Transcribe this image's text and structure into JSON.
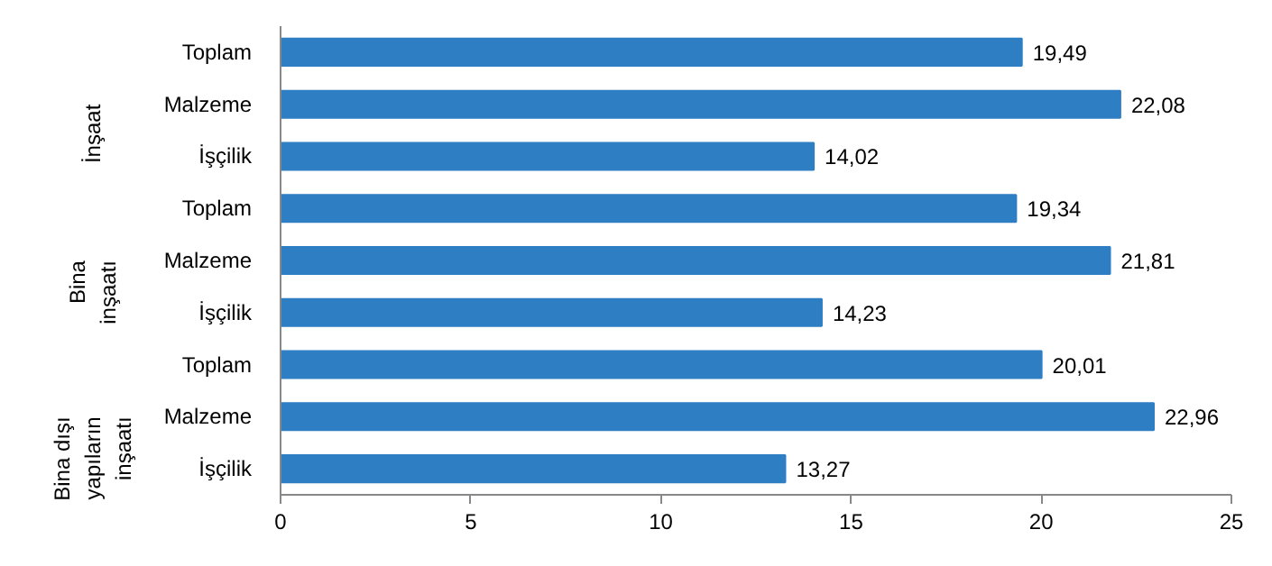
{
  "chart_data": {
    "type": "bar",
    "orientation": "horizontal",
    "categories": [
      "Toplam",
      "Malzeme",
      "İşçilik",
      "Toplam",
      "Malzeme",
      "İşçilik",
      "Toplam",
      "Malzeme",
      "İşçilik"
    ],
    "values": [
      19.49,
      22.08,
      14.02,
      19.34,
      21.81,
      14.23,
      20.01,
      22.96,
      13.27
    ],
    "value_labels": [
      "19,49",
      "22,08",
      "14,02",
      "19,34",
      "21,81",
      "14,23",
      "20,01",
      "22,96",
      "13,27"
    ],
    "color": "#2e7ec4",
    "xlim": [
      0,
      25
    ],
    "xticks": [
      0,
      5,
      10,
      15,
      20,
      25
    ],
    "grid": false,
    "annotations": [
      "İnşaat",
      "Bina\ninşaatı",
      "Bina dışı\nyapıların\ninşaatı"
    ]
  }
}
